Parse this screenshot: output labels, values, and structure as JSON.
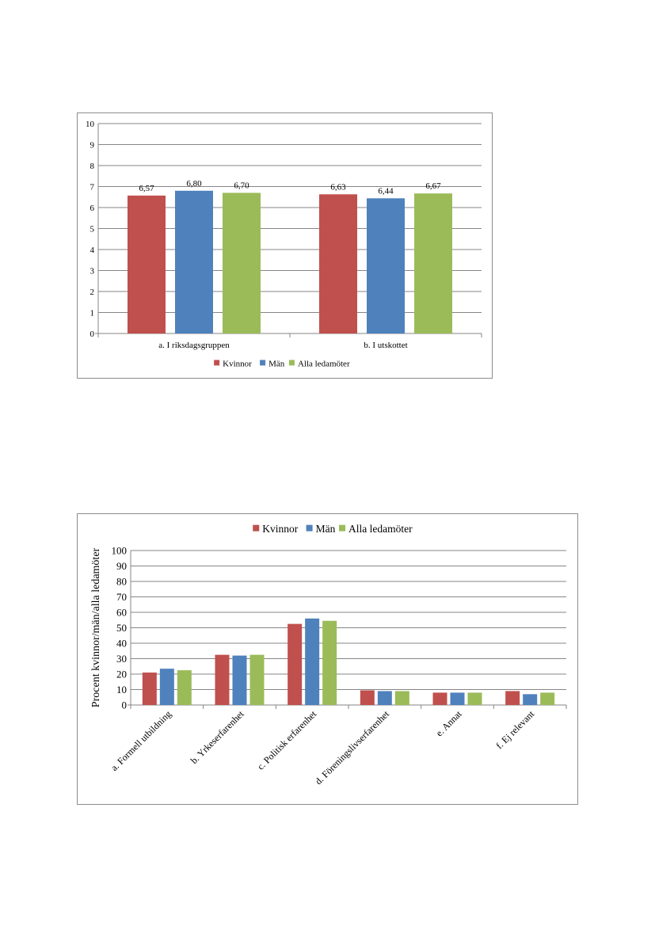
{
  "charts": [
    {
      "type": "bar",
      "title": "",
      "xlabel": "",
      "ylabel": "",
      "categories": [
        "a. I riksdagsgruppen",
        "b. I utskottet"
      ],
      "series": [
        {
          "name": "Kvinnor",
          "values": [
            6.57,
            6.63
          ],
          "labels": [
            "6,57",
            "6,63"
          ],
          "color": "#c0504d"
        },
        {
          "name": "Män",
          "values": [
            6.8,
            6.44
          ],
          "labels": [
            "6,80",
            "6,44"
          ],
          "color": "#4f81bd"
        },
        {
          "name": "Alla ledamöter",
          "values": [
            6.7,
            6.67
          ],
          "labels": [
            "6,70",
            "6,67"
          ],
          "color": "#9bbb59"
        }
      ],
      "ylim": [
        0,
        10
      ],
      "yticks": [
        "0",
        "1",
        "2",
        "3",
        "4",
        "5",
        "6",
        "7",
        "8",
        "9",
        "10"
      ],
      "grid": true,
      "legend": "bottom"
    },
    {
      "type": "bar",
      "title": "",
      "xlabel": "",
      "ylabel": "Procent kvinnor/män/alla ledamöter",
      "categories": [
        "a. Formell utbildning",
        "b. Yrkeserfarenhet",
        "c. Politisk erfarenhet",
        "d. Föreningslivserfarenhet",
        "e. Annat",
        "f. Ej relevant"
      ],
      "series": [
        {
          "name": "Kvinnor",
          "values": [
            21,
            32.5,
            52.5,
            9.5,
            8,
            9
          ],
          "color": "#c0504d"
        },
        {
          "name": "Män",
          "values": [
            23.5,
            32,
            56,
            9,
            8,
            7
          ],
          "color": "#4f81bd"
        },
        {
          "name": "Alla ledamöter",
          "values": [
            22.5,
            32.5,
            54.5,
            9,
            8,
            8
          ],
          "color": "#9bbb59"
        }
      ],
      "ylim": [
        0,
        100
      ],
      "yticks": [
        "0",
        "10",
        "20",
        "30",
        "40",
        "50",
        "60",
        "70",
        "80",
        "90",
        "100"
      ],
      "grid": true,
      "legend": "top"
    }
  ]
}
